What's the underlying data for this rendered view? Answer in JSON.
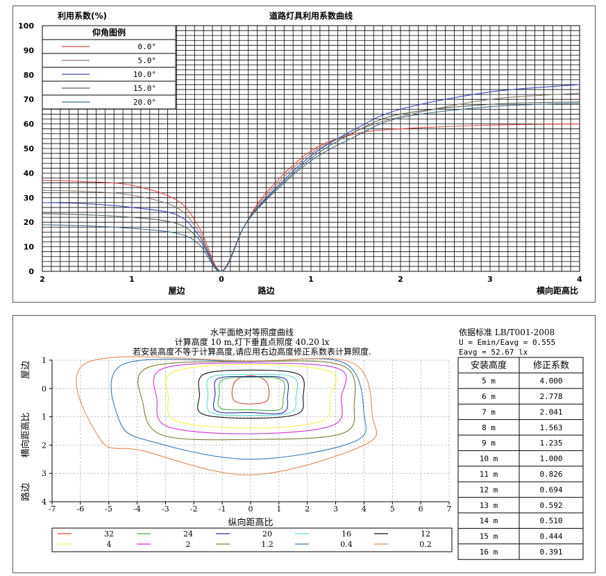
{
  "charts": {
    "top": {
      "type": "line",
      "title": "道路灯具利用系数曲线",
      "ylabel": "利用系数(%)",
      "xlabel": "横向距高比",
      "side_left_label": "屋边",
      "side_right_label": "路边",
      "x_tick_labels": [
        "2",
        "1",
        "0",
        "1",
        "2",
        "3",
        "4"
      ],
      "y_tick_labels": [
        "0",
        "10",
        "20",
        "30",
        "40",
        "50",
        "60",
        "70",
        "80",
        "90",
        "100"
      ],
      "xlim": [
        -2,
        4
      ],
      "ylim": [
        0,
        100
      ],
      "grid": true,
      "legend_title": "仰角图例",
      "legend_position": "top-left"
    },
    "bottom": {
      "title_lines": [
        "水平面绝对等照度曲线",
        "计算高度 10 m,灯下垂直点照度  40.20 lx",
        "若安装高度不等于计算高度,请应用右边高度修正系数表计算照度."
      ],
      "ylabel": "横向距高比",
      "side_top_label": "屋边",
      "side_bottom_label": "路边",
      "xlabel": "纵向距高比",
      "x_tick_labels": [
        "-7",
        "-6",
        "-5",
        "-4",
        "-3",
        "-2",
        "-1",
        "0",
        "1",
        "2",
        "3",
        "4",
        "5",
        "6",
        "7"
      ],
      "y_tick_labels": [
        "1",
        "0",
        "1",
        "2",
        "3",
        "4"
      ],
      "xlim": [
        -7,
        7
      ],
      "ylim": [
        -1,
        4
      ],
      "grid": true
    },
    "info": {
      "standard": "依据标准 LB/T001-2008",
      "uniformity": "U = Emin/Eavg = 0.555",
      "eavg": "Eavg = 52.67 lx",
      "table_headers": [
        "安装高度",
        "修正系数"
      ],
      "rows": [
        [
          "5 m",
          "4.000"
        ],
        [
          "6 m",
          "2.778"
        ],
        [
          "7 m",
          "2.041"
        ],
        [
          "8 m",
          "1.563"
        ],
        [
          "9 m",
          "1.235"
        ],
        [
          "10 m",
          "1.000"
        ],
        [
          "11 m",
          "0.826"
        ],
        [
          "12 m",
          "0.694"
        ],
        [
          "13 m",
          "0.592"
        ],
        [
          "14 m",
          "0.510"
        ],
        [
          "15 m",
          "0.444"
        ],
        [
          "16 m",
          "0.391"
        ]
      ]
    }
  },
  "chart_data": [
    {
      "type": "line",
      "title": "道路灯具利用系数曲线",
      "ylabel": "利用系数(%)",
      "xlabel": "横向距高比",
      "xlim": [
        -2,
        4
      ],
      "ylim": [
        0,
        100
      ],
      "series": [
        {
          "name": "0.0°",
          "color": "#d9453f",
          "x": [
            -2,
            -1.5,
            -1,
            -0.5,
            -0.25,
            0,
            0.25,
            0.5,
            1,
            1.5,
            2,
            3,
            4
          ],
          "y": [
            37,
            36.5,
            35,
            29,
            18,
            0,
            18,
            32,
            49,
            56,
            58,
            59.5,
            60
          ]
        },
        {
          "name": "5.0°",
          "color": "#8a7a6a",
          "x": [
            -2,
            -1.5,
            -1,
            -0.5,
            -0.25,
            0,
            0.25,
            0.5,
            1,
            1.5,
            2,
            3,
            4
          ],
          "y": [
            33,
            32.5,
            31,
            26,
            16,
            0,
            18,
            31,
            48,
            57,
            63,
            70,
            72.5
          ]
        },
        {
          "name": "10.0°",
          "color": "#3d46b8",
          "x": [
            -2,
            -1.5,
            -1,
            -0.5,
            -0.25,
            0,
            0.25,
            0.5,
            1,
            1.5,
            2,
            3,
            4
          ],
          "y": [
            28,
            27.5,
            26,
            23,
            14.5,
            0,
            18,
            30,
            47,
            58,
            66,
            73,
            76
          ]
        },
        {
          "name": "15.0°",
          "color": "#556655",
          "x": [
            -2,
            -1.5,
            -1,
            -0.5,
            -0.25,
            0,
            0.25,
            0.5,
            1,
            1.5,
            2,
            3,
            4
          ],
          "y": [
            23.5,
            23,
            22,
            19.5,
            13,
            0,
            18,
            29.5,
            46,
            57,
            64,
            68,
            69
          ]
        },
        {
          "name": "20.0°",
          "color": "#3a6a88",
          "x": [
            -2,
            -1.5,
            -1,
            -0.5,
            -0.25,
            0,
            0.25,
            0.5,
            1,
            1.5,
            2,
            3,
            4
          ],
          "y": [
            19,
            18.5,
            17.5,
            15.5,
            11,
            0,
            18,
            29,
            45,
            55,
            62.5,
            67,
            68.5
          ]
        }
      ]
    },
    {
      "type": "contour",
      "title": "水平面绝对等照度曲线",
      "xlabel": "纵向距高比",
      "ylabel": "横向距高比",
      "xlim": [
        -7,
        7
      ],
      "ylim": [
        -1,
        4
      ],
      "series": [
        {
          "name": "32",
          "color": "#d9453f",
          "points": [
            [
              -0.5,
              -0.3
            ],
            [
              0,
              -0.45
            ],
            [
              0.5,
              -0.3
            ],
            [
              0.65,
              0.1
            ],
            [
              0.55,
              0.45
            ],
            [
              0,
              0.55
            ],
            [
              -0.55,
              0.45
            ],
            [
              -0.65,
              0.1
            ]
          ]
        },
        {
          "name": "24",
          "color": "#3fae4a",
          "points": [
            [
              -1,
              -0.3
            ],
            [
              0,
              -0.4
            ],
            [
              1.1,
              -0.3
            ],
            [
              1.15,
              0.35
            ],
            [
              1,
              0.75
            ],
            [
              0,
              0.75
            ],
            [
              -1.05,
              0.7
            ],
            [
              -1.1,
              0.2
            ]
          ]
        },
        {
          "name": "20",
          "color": "#2a2a9a",
          "points": [
            [
              -1.15,
              -0.35
            ],
            [
              0,
              -0.42
            ],
            [
              1.2,
              -0.35
            ],
            [
              1.3,
              0.3
            ],
            [
              1.15,
              0.85
            ],
            [
              0,
              0.85
            ],
            [
              -1.2,
              0.8
            ],
            [
              -1.25,
              0.2
            ]
          ]
        },
        {
          "name": "16",
          "color": "#5fd6d6",
          "points": [
            [
              -1.4,
              -0.4
            ],
            [
              0,
              -0.5
            ],
            [
              1.5,
              -0.4
            ],
            [
              1.6,
              0.3
            ],
            [
              1.4,
              0.85
            ],
            [
              0,
              0.95
            ],
            [
              -1.4,
              0.85
            ],
            [
              -1.5,
              0.2
            ]
          ]
        },
        {
          "name": "12",
          "color": "#111111",
          "points": [
            [
              -1.65,
              -0.5
            ],
            [
              0,
              -0.65
            ],
            [
              1.7,
              -0.5
            ],
            [
              1.85,
              0.3
            ],
            [
              1.65,
              0.9
            ],
            [
              0,
              1.05
            ],
            [
              -1.7,
              0.9
            ],
            [
              -1.8,
              0.25
            ]
          ]
        },
        {
          "name": "4",
          "color": "#f2f24a",
          "points": [
            [
              -2.7,
              -0.6
            ],
            [
              0,
              -0.85
            ],
            [
              2.8,
              -0.6
            ],
            [
              2.8,
              0.3
            ],
            [
              2.5,
              1.15
            ],
            [
              0,
              1.4
            ],
            [
              -2.6,
              1.15
            ],
            [
              -2.9,
              0.3
            ]
          ]
        },
        {
          "name": "2",
          "color": "#cc33cc",
          "points": [
            [
              -3.1,
              -0.7
            ],
            [
              0,
              -0.9
            ],
            [
              3.1,
              -0.7
            ],
            [
              3.2,
              0.3
            ],
            [
              2.9,
              1.3
            ],
            [
              0,
              1.6
            ],
            [
              -2.9,
              1.35
            ],
            [
              -3.3,
              0.4
            ]
          ]
        },
        {
          "name": "1.2",
          "color": "#7a7a30",
          "points": [
            [
              -3.6,
              -0.75
            ],
            [
              0,
              -0.95
            ],
            [
              3.25,
              -0.8
            ],
            [
              3.65,
              0.6
            ],
            [
              3.2,
              1.6
            ],
            [
              0,
              1.8
            ],
            [
              -3.1,
              1.65
            ],
            [
              -3.8,
              0.5
            ]
          ]
        },
        {
          "name": "0.4",
          "color": "#3a7ab5",
          "points": [
            [
              -4.5,
              -0.85
            ],
            [
              0,
              -0.95
            ],
            [
              3.3,
              -0.9
            ],
            [
              4.0,
              0.9
            ],
            [
              3.6,
              1.9
            ],
            [
              0,
              2.5
            ],
            [
              -3.4,
              1.9
            ],
            [
              -4.6,
              1.2
            ]
          ]
        },
        {
          "name": "0.2",
          "color": "#dd8a55",
          "points": [
            [
              -5.8,
              -0.9
            ],
            [
              0,
              -0.97
            ],
            [
              3.6,
              -0.9
            ],
            [
              4.3,
              1.0
            ],
            [
              4.0,
              2.0
            ],
            [
              0,
              3.05
            ],
            [
              -3.8,
              2.2
            ],
            [
              -5.3,
              1.8
            ]
          ]
        }
      ]
    }
  ]
}
